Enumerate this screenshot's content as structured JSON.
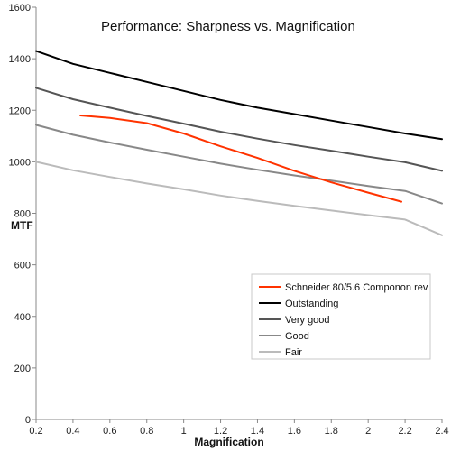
{
  "chart_data": {
    "type": "line",
    "title": "Performance: Sharpness vs. Magnification",
    "xlabel": "Magnification",
    "ylabel": "MTF",
    "xlim": [
      0.2,
      2.4
    ],
    "ylim": [
      0,
      1600
    ],
    "xticks": [
      "0.2",
      "0.4",
      "0.6",
      "0.8",
      "1",
      "1.2",
      "1.4",
      "1.6",
      "1.8",
      "2",
      "2.2",
      "2.4"
    ],
    "yticks": [
      "0",
      "200",
      "400",
      "600",
      "800",
      "1000",
      "1200",
      "1400",
      "1600"
    ],
    "grid": "none",
    "legend_position": "bottom-right",
    "series": [
      {
        "name": "Schneider 80/5.6 Componon rev",
        "color": "#ff3300",
        "x": [
          0.44,
          0.6,
          0.8,
          1.0,
          1.2,
          1.4,
          1.6,
          1.8,
          2.0,
          2.18
        ],
        "y": [
          1180,
          1170,
          1150,
          1110,
          1060,
          1015,
          965,
          920,
          880,
          845
        ]
      },
      {
        "name": "Outstanding",
        "color": "#000000",
        "x": [
          0.2,
          0.4,
          0.6,
          0.8,
          1.0,
          1.2,
          1.4,
          1.6,
          1.8,
          2.0,
          2.2,
          2.4
        ],
        "y": [
          1430,
          1380,
          1345,
          1310,
          1275,
          1240,
          1210,
          1185,
          1160,
          1135,
          1110,
          1088
        ]
      },
      {
        "name": "Very good",
        "color": "#555555",
        "x": [
          0.2,
          0.4,
          0.6,
          0.8,
          1.0,
          1.2,
          1.4,
          1.6,
          1.8,
          2.0,
          2.2,
          2.4
        ],
        "y": [
          1287,
          1243,
          1210,
          1178,
          1148,
          1117,
          1090,
          1065,
          1043,
          1020,
          998,
          965
        ]
      },
      {
        "name": "Good",
        "color": "#888888",
        "x": [
          0.2,
          0.4,
          0.6,
          0.8,
          1.0,
          1.2,
          1.4,
          1.6,
          1.8,
          2.0,
          2.2,
          2.4
        ],
        "y": [
          1143,
          1105,
          1075,
          1047,
          1020,
          993,
          969,
          947,
          927,
          906,
          887,
          838
        ]
      },
      {
        "name": "Fair",
        "color": "#bbbbbb",
        "x": [
          0.2,
          0.4,
          0.6,
          0.8,
          1.0,
          1.2,
          1.4,
          1.6,
          1.8,
          2.0,
          2.2,
          2.4
        ],
        "y": [
          1000,
          967,
          941,
          916,
          893,
          869,
          848,
          829,
          811,
          793,
          776,
          715
        ]
      }
    ]
  }
}
